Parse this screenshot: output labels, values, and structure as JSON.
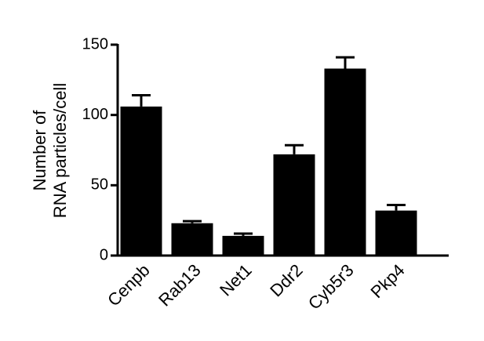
{
  "chart_data": {
    "type": "bar",
    "ylabel": [
      "Number of",
      "RNA particles/cell"
    ],
    "categories": [
      "Cenpb",
      "Rab13",
      "Net1",
      "Ddr2",
      "Cyb5r3",
      "Pkp4"
    ],
    "values": [
      106,
      23,
      14,
      72,
      133,
      32
    ],
    "errors": [
      8,
      1.5,
      1.6,
      6.5,
      8,
      4
    ],
    "color": "#000000",
    "ylim": [
      0,
      150
    ],
    "yticks": [
      0,
      50,
      100,
      150
    ],
    "grid": false
  }
}
